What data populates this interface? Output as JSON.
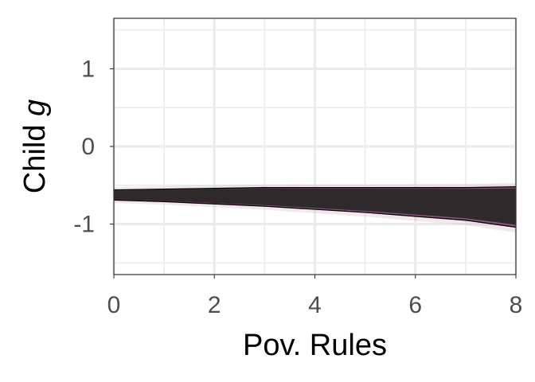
{
  "chart_data": {
    "type": "area",
    "xlabel": "Pov. Rules",
    "ylabel_prefix": "Child ",
    "ylabel_var": "g",
    "xlim": [
      0,
      8
    ],
    "ylim": [
      -1.65,
      1.65
    ],
    "x_ticks": [
      0,
      2,
      4,
      6,
      8
    ],
    "x_tick_labels": [
      "0",
      "2",
      "4",
      "6",
      "8"
    ],
    "y_ticks": [
      1,
      0,
      -1
    ],
    "y_tick_labels": [
      "1",
      "0",
      "-1"
    ],
    "grid": true,
    "band": {
      "x": [
        0,
        1,
        2,
        3,
        4,
        5,
        6,
        7,
        8
      ],
      "upper": [
        -0.56,
        -0.55,
        -0.54,
        -0.53,
        -0.53,
        -0.53,
        -0.53,
        -0.53,
        -0.52
      ],
      "mean": [
        -0.62,
        -0.625,
        -0.63,
        -0.635,
        -0.64,
        -0.65,
        -0.66,
        -0.68,
        -0.71
      ],
      "lower": [
        -0.69,
        -0.71,
        -0.74,
        -0.77,
        -0.81,
        -0.85,
        -0.9,
        -0.95,
        -1.04
      ]
    },
    "colors": {
      "band_fill": "#2e2a2b",
      "band_edge": "#7a3a6e",
      "haze": "#c9a4bd",
      "boundary": "#000000",
      "panel_border": "#333333"
    }
  }
}
